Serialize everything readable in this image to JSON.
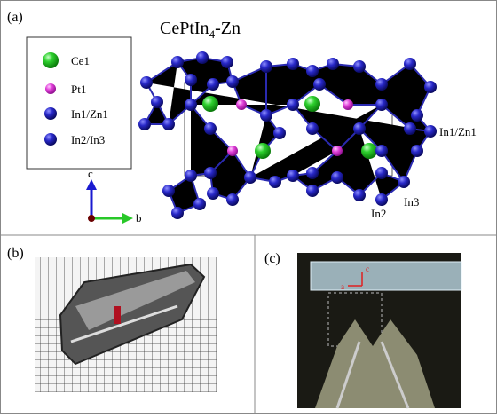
{
  "panel_a": {
    "label": "(a)",
    "title": {
      "main": "CePtIn",
      "subscript": "4",
      "suffix": "-Zn"
    },
    "legend": [
      "Ce1",
      "Pt1",
      "In1/Zn1",
      "In2/In3"
    ],
    "atom_labels": [
      "In1/Zn1",
      "In3",
      "In2"
    ],
    "axes": [
      "c",
      "b"
    ]
  },
  "panel_b": {
    "label": "(b)"
  },
  "panel_c": {
    "label": "(c)",
    "axes": [
      "a",
      "c"
    ]
  }
}
